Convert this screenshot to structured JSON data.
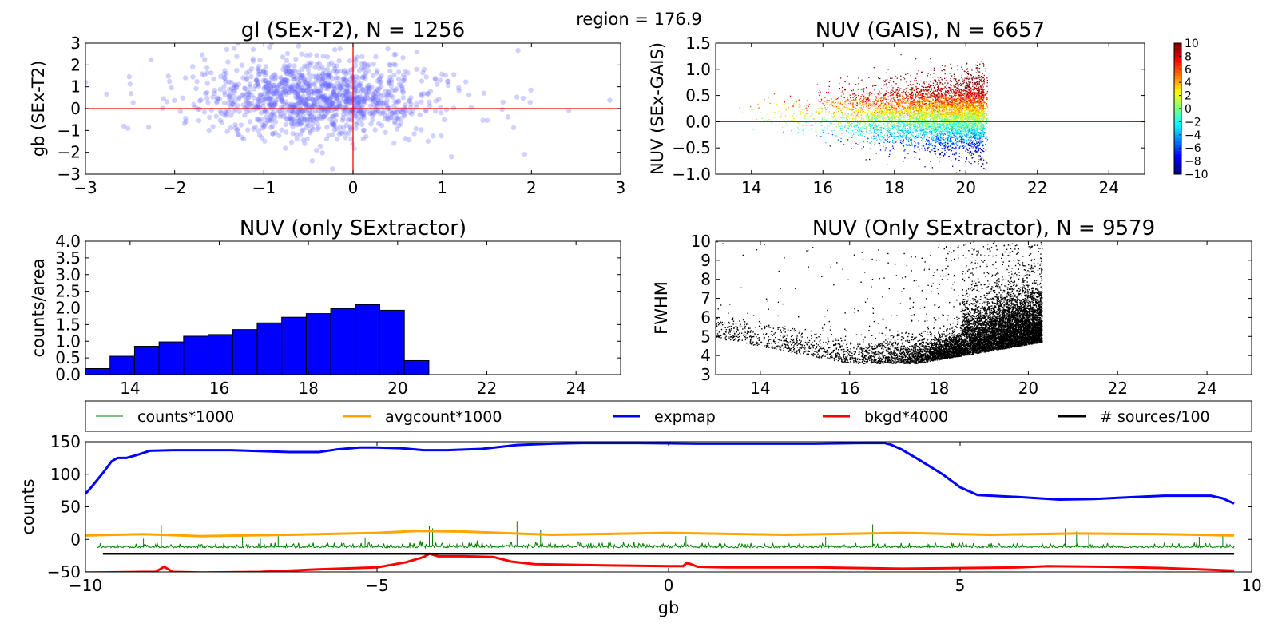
{
  "suptitle": "region = 176.9",
  "colors": {
    "hist_fill": "#0000ff",
    "scatter1": "#6666ff",
    "ref_line": "#ff0000",
    "counts": "#008000",
    "avgcount": "#ffa500",
    "expmap": "#0000ff",
    "bkgd": "#ff0000",
    "sources": "#000000"
  },
  "chart_data": [
    {
      "type": "scatter",
      "title": "gl (SEx-T2), N = 1256",
      "xlabel": "",
      "ylabel": "gb (SEx-T2)",
      "xlim": [
        -3,
        3
      ],
      "ylim": [
        -3,
        3
      ],
      "xticks": [
        "−3",
        "−2",
        "−1",
        "0",
        "1",
        "2",
        "3"
      ],
      "yticks": [
        "−3",
        "−2",
        "−1",
        "0",
        "1",
        "2",
        "3"
      ],
      "n_points": 1256,
      "point_cloud": {
        "x_center": -0.4,
        "y_center": 0.5,
        "x_spread": 0.6,
        "y_spread": 0.9
      },
      "reference_lines": {
        "x": 0,
        "y": 0
      },
      "grid": false
    },
    {
      "type": "scatter",
      "title": "NUV (GAIS), N = 6657",
      "xlabel": "",
      "ylabel": "NUV (SEx-GAIS)",
      "xlim": [
        13,
        25
      ],
      "ylim": [
        -1.0,
        1.5
      ],
      "xticks": [
        "14",
        "16",
        "18",
        "20",
        "22",
        "24"
      ],
      "yticks": [
        "−1.0",
        "−0.5",
        "0.0",
        "0.5",
        "1.0",
        "1.5"
      ],
      "n_points": 6657,
      "point_cloud": {
        "x_min": 13.5,
        "x_max": 20.5,
        "y_center": 0.15,
        "y_spread": 0.25
      },
      "colorbar": {
        "range": [
          -10,
          10
        ],
        "ticks": [
          "10",
          "8",
          "6",
          "4",
          "2",
          "0",
          "−2",
          "−4",
          "−6",
          "−8",
          "−10"
        ]
      },
      "reference_lines": {
        "y": 0
      },
      "grid": false
    },
    {
      "type": "bar",
      "title": "NUV (only SExtractor)",
      "xlabel": "",
      "ylabel": "counts/area",
      "xlim": [
        13,
        25
      ],
      "ylim": [
        0,
        4.0
      ],
      "xticks": [
        "14",
        "16",
        "18",
        "20",
        "22",
        "24"
      ],
      "yticks": [
        "0.0",
        "0.5",
        "1.0",
        "1.5",
        "2.0",
        "2.5",
        "3.0",
        "3.5",
        "4.0"
      ],
      "bin_edges": [
        13.0,
        13.55,
        14.1,
        14.65,
        15.2,
        15.75,
        16.3,
        16.85,
        17.4,
        17.95,
        18.5,
        19.05,
        19.6,
        20.15,
        20.7
      ],
      "values": [
        0.18,
        0.55,
        0.85,
        0.98,
        1.15,
        1.2,
        1.35,
        1.55,
        1.72,
        1.83,
        1.98,
        2.1,
        1.93,
        0.42
      ],
      "grid": false
    },
    {
      "type": "scatter",
      "title": "NUV (Only SExtractor),  N = 9579",
      "xlabel": "",
      "ylabel": "FWHM",
      "xlim": [
        13,
        25
      ],
      "ylim": [
        3,
        10
      ],
      "xticks": [
        "14",
        "16",
        "18",
        "20",
        "22",
        "24"
      ],
      "yticks": [
        "3",
        "4",
        "5",
        "6",
        "7",
        "8",
        "9",
        "10"
      ],
      "n_points": 9579,
      "point_cloud": {
        "x_min": 13,
        "x_max": 20.3,
        "y_floor": 3.6,
        "y_max": 10
      },
      "grid": false
    },
    {
      "type": "line",
      "title": "",
      "xlabel": "gb",
      "ylabel": "counts",
      "xlim": [
        -10,
        10
      ],
      "ylim": [
        -50,
        150
      ],
      "xticks": [
        "−10",
        "−5",
        "0",
        "5",
        "10"
      ],
      "yticks": [
        "−50",
        "0",
        "50",
        "100",
        "150"
      ],
      "legend_position": "top, above plot",
      "series": [
        {
          "name": "counts*1000",
          "color": "#008000",
          "baseline": -13,
          "spikes": [
            {
              "x": -9.0,
              "y": 1
            },
            {
              "x": -8.7,
              "y": 22
            },
            {
              "x": -7.3,
              "y": 5
            },
            {
              "x": -7.0,
              "y": 1
            },
            {
              "x": -6.7,
              "y": 5
            },
            {
              "x": -5.2,
              "y": 3
            },
            {
              "x": -4.1,
              "y": 20
            },
            {
              "x": -4.05,
              "y": 17
            },
            {
              "x": -2.6,
              "y": 28
            },
            {
              "x": -2.2,
              "y": 14
            },
            {
              "x": 0.3,
              "y": 5
            },
            {
              "x": 2.7,
              "y": 4
            },
            {
              "x": 3.5,
              "y": 23
            },
            {
              "x": 6.8,
              "y": 17
            },
            {
              "x": 7.0,
              "y": 12
            },
            {
              "x": 7.2,
              "y": 11
            },
            {
              "x": 9.1,
              "y": 4
            },
            {
              "x": 9.5,
              "y": 5
            }
          ]
        },
        {
          "name": "avgcount*1000",
          "color": "#ffa500",
          "x": [
            -10,
            -9,
            -8,
            -6.5,
            -5,
            -4.3,
            -3.5,
            -2,
            0,
            2,
            4,
            5.5,
            7,
            8.5,
            9.7
          ],
          "y": [
            6,
            8,
            5,
            7,
            10,
            13,
            12,
            7,
            10,
            7,
            10,
            7,
            9,
            8,
            6
          ]
        },
        {
          "name": "expmap",
          "color": "#0000ff",
          "x": [
            -10,
            -9.9,
            -9.7,
            -9.55,
            -9.45,
            -9.3,
            -9.1,
            -8.9,
            -8.5,
            -8.0,
            -7.5,
            -6.5,
            -6.0,
            -5.7,
            -5.3,
            -5.0,
            -4.6,
            -4.2,
            -3.8,
            -3.2,
            -2.6,
            -2.0,
            -1.5,
            -0.5,
            0.5,
            1.5,
            2.5,
            3.3,
            3.7,
            3.8,
            4.0,
            4.3,
            4.7,
            5.0,
            5.3,
            6.0,
            6.7,
            7.3,
            8.0,
            8.5,
            9.0,
            9.3,
            9.5,
            9.7
          ],
          "y": [
            70,
            80,
            102,
            120,
            125,
            125,
            130,
            136,
            137,
            137,
            137,
            134,
            134,
            138,
            141,
            141,
            140,
            137,
            137,
            139,
            145,
            147,
            148,
            148,
            147,
            147,
            147,
            148,
            148,
            146,
            138,
            122,
            100,
            80,
            68,
            65,
            61,
            62,
            65,
            67,
            67,
            67,
            63,
            55
          ]
        },
        {
          "name": "bkgd*4000",
          "color": "#ff0000",
          "x": [
            -10,
            -9.0,
            -8.8,
            -8.65,
            -8.5,
            -8.0,
            -7.0,
            -6.0,
            -5.0,
            -4.5,
            -4.2,
            -4.1,
            -3.95,
            -3.5,
            -3.0,
            -2.7,
            -2.3,
            -1.0,
            0.0,
            0.25,
            0.3,
            0.35,
            0.5,
            1.0,
            2.5,
            4.0,
            5.0,
            6.0,
            6.5,
            7.5,
            8.5,
            9.7
          ],
          "y": [
            -51,
            -50,
            -50,
            -42,
            -50,
            -51,
            -50,
            -46,
            -43,
            -35,
            -27,
            -22,
            -26,
            -26,
            -27,
            -34,
            -38,
            -40,
            -41,
            -41,
            -37,
            -37,
            -42,
            -43,
            -43,
            -45,
            -44,
            -43,
            -41,
            -42,
            -44,
            -48
          ]
        },
        {
          "name": "# sources/100",
          "color": "#000000",
          "x": [
            -9.7,
            9.7
          ],
          "y": [
            -22,
            -22
          ]
        }
      ],
      "grid": false
    }
  ]
}
